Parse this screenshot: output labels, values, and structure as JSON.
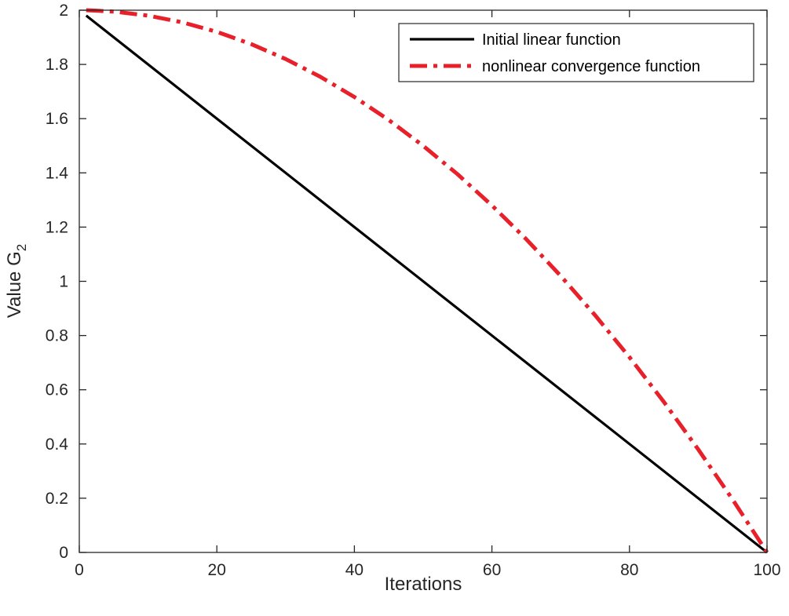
{
  "chart_data": {
    "type": "line",
    "title": "",
    "xlabel": "Iterations",
    "ylabel": "Value G",
    "ylabel_subscript": "2",
    "xlim": [
      0,
      100
    ],
    "ylim": [
      0,
      2
    ],
    "xticks": [
      0,
      20,
      40,
      60,
      80,
      100
    ],
    "yticks": [
      0,
      0.2,
      0.4,
      0.6,
      0.8,
      1,
      1.2,
      1.4,
      1.6,
      1.8,
      2
    ],
    "ytick_labels": [
      "0",
      "0.2",
      "0.4",
      "0.6",
      "0.8",
      "1",
      "1.2",
      "1.4",
      "1.6",
      "1.8",
      "2"
    ],
    "grid": false,
    "legend_position": "top-right",
    "series": [
      {
        "name": "Initial linear function",
        "color": "#000000",
        "style": "solid",
        "x": [
          1,
          100
        ],
        "y": [
          1.98,
          0
        ]
      },
      {
        "name": "nonlinear convergence function",
        "color": "#e8202a",
        "style": "dashdot",
        "x": [
          1,
          5,
          10,
          15,
          20,
          25,
          30,
          35,
          40,
          45,
          50,
          55,
          60,
          65,
          70,
          75,
          80,
          85,
          90,
          95,
          100
        ],
        "y": [
          2.0,
          1.995,
          1.98,
          1.955,
          1.92,
          1.875,
          1.82,
          1.755,
          1.68,
          1.595,
          1.5,
          1.395,
          1.28,
          1.155,
          1.02,
          0.875,
          0.72,
          0.555,
          0.38,
          0.195,
          0.0
        ]
      }
    ]
  }
}
